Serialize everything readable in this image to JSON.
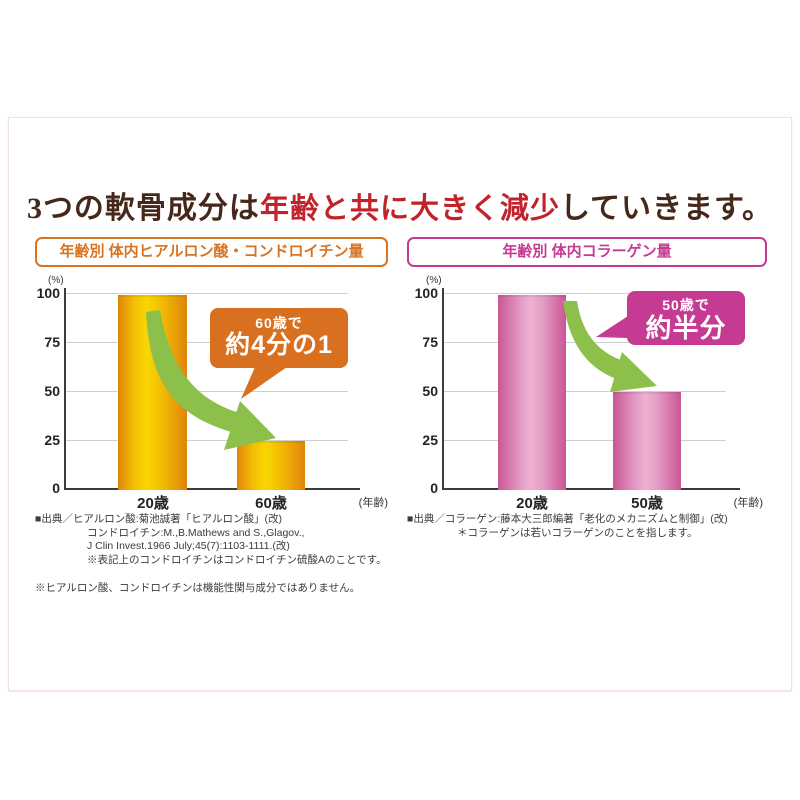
{
  "page": {
    "title_prefix": "3つの軟骨成分は",
    "title_highlight": "年齢と共に大きく減少",
    "title_suffix": "していきます。"
  },
  "colors": {
    "title_brown": "#46281a",
    "title_red": "#c2232a",
    "left_accent": "#d9731f",
    "right_accent": "#c53a92",
    "arrow_green": "#8cc04a",
    "grid_gray": "#cfcfcf",
    "axis_dark": "#3c3c3c",
    "left_bar_edge": "#df850a",
    "left_bar_center": "#f9d702",
    "right_bar_edge": "#ca5694",
    "right_bar_center": "#eeb0d1"
  },
  "chart_data": [
    {
      "type": "bar",
      "title": "年齢別 体内ヒアルロン酸・コンドロイチン量",
      "categories": [
        "20歳",
        "60歳"
      ],
      "values": [
        100,
        25
      ],
      "ylabel": "(%)",
      "xlabel": "(年齢)",
      "ylim": [
        0,
        100
      ],
      "yticks": [
        100,
        75,
        50,
        25,
        0
      ],
      "grid": true,
      "legend": false,
      "callout": {
        "line1": "60歳で",
        "line2": "約4分の1"
      }
    },
    {
      "type": "bar",
      "title": "年齢別 体内コラーゲン量",
      "categories": [
        "20歳",
        "50歳"
      ],
      "values": [
        100,
        50
      ],
      "ylabel": "(%)",
      "xlabel": "(年齢)",
      "ylim": [
        0,
        100
      ],
      "yticks": [
        100,
        75,
        50,
        25,
        0
      ],
      "grid": true,
      "legend": false,
      "callout": {
        "line1": "50歳で",
        "line2": "約半分"
      }
    }
  ],
  "footnotes": {
    "left_source": [
      "■出典／ヒアルロン酸:菊池誠著「ヒアルロン酸」(改)",
      "コンドロイチン:M.,B.Mathews and S.,Glagov.,",
      "J Clin Invest.1966 July;45(7):1103-1111.(改)",
      "※表記上のコンドロイチンはコンドロイチン硫酸Aのことです。"
    ],
    "left_note": "※ヒアルロン酸、コンドロイチンは機能性関与成分ではありません。",
    "right_source": [
      "■出典／コラーゲン:藤本大三郎編著「老化のメカニズムと制御」(改)",
      "＊コラーゲンは若いコラーゲンのことを指します。"
    ]
  }
}
